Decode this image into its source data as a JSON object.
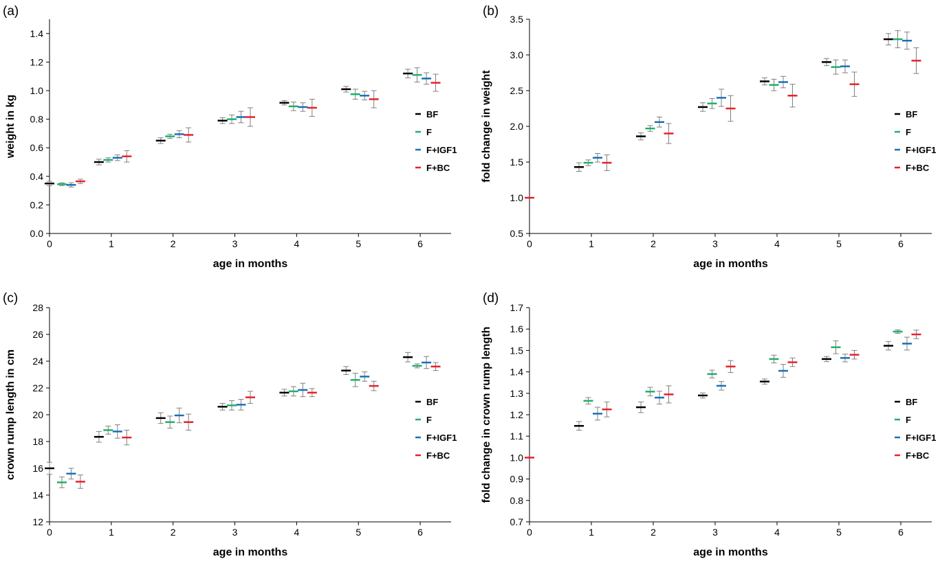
{
  "colors": {
    "BF": "#000000",
    "F": "#1eb06a",
    "F+IGF1": "#1a6fb8",
    "F+BC": "#e8202a",
    "errorbar": "#7f7f7f",
    "axis": "#000000"
  },
  "chart_data": [
    {
      "panel": "(a)",
      "type": "scatter",
      "xlabel": "age in months",
      "ylabel": "weight in kg",
      "xlim": [
        0,
        6.5
      ],
      "xticks": [
        0,
        1,
        2,
        3,
        4,
        5,
        6
      ],
      "ylim": [
        0.0,
        1.5
      ],
      "yticks": [
        "0.0",
        "0.2",
        "0.4",
        "0.6",
        "0.8",
        "1.0",
        "1.2",
        "1.4"
      ],
      "legend": [
        "BF",
        "F",
        "F+IGF1",
        "F+BC"
      ],
      "legend_position": "right",
      "series": [
        {
          "name": "BF",
          "x": [
            0,
            0.8,
            1.8,
            2.8,
            3.8,
            4.8,
            5.8
          ],
          "y": [
            0.35,
            0.5,
            0.65,
            0.79,
            0.915,
            1.01,
            1.12
          ],
          "err": [
            0.015,
            0.02,
            0.02,
            0.02,
            0.015,
            0.02,
            0.03
          ]
        },
        {
          "name": "F",
          "x": [
            0.2,
            0.95,
            1.95,
            2.95,
            3.95,
            4.95,
            5.95
          ],
          "y": [
            0.345,
            0.515,
            0.68,
            0.8,
            0.89,
            0.975,
            1.11
          ],
          "err": [
            0.01,
            0.015,
            0.015,
            0.03,
            0.03,
            0.035,
            0.05
          ]
        },
        {
          "name": "F+IGF1",
          "x": [
            0.35,
            1.1,
            2.1,
            3.1,
            4.1,
            5.1,
            6.1
          ],
          "y": [
            0.34,
            0.53,
            0.695,
            0.815,
            0.885,
            0.965,
            1.085
          ],
          "err": [
            0.015,
            0.02,
            0.025,
            0.04,
            0.03,
            0.03,
            0.04
          ]
        },
        {
          "name": "F+BC",
          "x": [
            0.5,
            1.25,
            2.25,
            3.25,
            4.25,
            5.25,
            6.25
          ],
          "y": [
            0.365,
            0.54,
            0.69,
            0.815,
            0.88,
            0.94,
            1.055
          ],
          "err": [
            0.015,
            0.04,
            0.05,
            0.065,
            0.06,
            0.06,
            0.06
          ]
        }
      ]
    },
    {
      "panel": "(b)",
      "type": "scatter",
      "xlabel": "age in months",
      "ylabel": "fold change in weight",
      "xlim": [
        0,
        6.5
      ],
      "xticks": [
        0,
        1,
        2,
        3,
        4,
        5,
        6
      ],
      "ylim": [
        0.5,
        3.5
      ],
      "yticks": [
        "0.5",
        "1.0",
        "1.5",
        "2.0",
        "2.5",
        "3.0",
        "3.5"
      ],
      "legend": [
        "BF",
        "F",
        "F+IGF1",
        "F+BC"
      ],
      "legend_position": "right",
      "series": [
        {
          "name": "BF",
          "x": [
            0.8,
            1.8,
            2.8,
            3.8,
            4.8,
            5.8
          ],
          "y": [
            1.43,
            1.86,
            2.27,
            2.63,
            2.9,
            3.22
          ],
          "err": [
            0.06,
            0.05,
            0.06,
            0.05,
            0.05,
            0.08
          ]
        },
        {
          "name": "F",
          "x": [
            0.95,
            1.95,
            2.95,
            3.95,
            4.95,
            5.95
          ],
          "y": [
            1.49,
            1.97,
            2.32,
            2.58,
            2.83,
            3.22
          ],
          "err": [
            0.04,
            0.04,
            0.07,
            0.08,
            0.1,
            0.12
          ]
        },
        {
          "name": "F+IGF1",
          "x": [
            1.1,
            2.1,
            3.1,
            4.1,
            5.1,
            6.1
          ],
          "y": [
            1.56,
            2.06,
            2.4,
            2.62,
            2.84,
            3.2
          ],
          "err": [
            0.06,
            0.07,
            0.12,
            0.08,
            0.09,
            0.12
          ]
        },
        {
          "name": "F+BC",
          "x": [
            0,
            1.25,
            2.25,
            3.25,
            4.25,
            5.25,
            6.25
          ],
          "y": [
            1.0,
            1.49,
            1.9,
            2.25,
            2.43,
            2.59,
            2.92
          ],
          "err": [
            0,
            0.11,
            0.14,
            0.18,
            0.16,
            0.17,
            0.18
          ]
        }
      ]
    },
    {
      "panel": "(c)",
      "type": "scatter",
      "xlabel": "age in months",
      "ylabel": "crown rump length in cm",
      "xlim": [
        0,
        6.5
      ],
      "xticks": [
        0,
        1,
        2,
        3,
        4,
        5,
        6
      ],
      "ylim": [
        12,
        28
      ],
      "yticks": [
        "12",
        "14",
        "16",
        "18",
        "20",
        "22",
        "24",
        "26",
        "28"
      ],
      "legend": [
        "BF",
        "F",
        "F+IGF1",
        "F+BC"
      ],
      "legend_position": "right",
      "series": [
        {
          "name": "BF",
          "x": [
            0,
            0.8,
            1.8,
            2.8,
            3.8,
            4.8,
            5.8
          ],
          "y": [
            16.0,
            18.35,
            19.75,
            20.6,
            21.65,
            23.3,
            24.3
          ],
          "err": [
            0.45,
            0.4,
            0.4,
            0.25,
            0.25,
            0.3,
            0.35
          ]
        },
        {
          "name": "F",
          "x": [
            0.2,
            0.95,
            1.95,
            2.95,
            3.95,
            4.95,
            5.95
          ],
          "y": [
            14.95,
            18.85,
            19.45,
            20.7,
            21.75,
            22.6,
            23.65
          ],
          "err": [
            0.4,
            0.3,
            0.45,
            0.35,
            0.35,
            0.5,
            0.15
          ]
        },
        {
          "name": "F+IGF1",
          "x": [
            0.35,
            1.1,
            2.1,
            3.1,
            4.1,
            5.1,
            6.1
          ],
          "y": [
            15.6,
            18.75,
            19.95,
            20.75,
            21.85,
            22.85,
            23.9
          ],
          "err": [
            0.4,
            0.5,
            0.55,
            0.4,
            0.5,
            0.35,
            0.45
          ]
        },
        {
          "name": "F+BC",
          "x": [
            0.5,
            1.25,
            2.25,
            3.25,
            4.25,
            5.25,
            6.25
          ],
          "y": [
            15.0,
            18.3,
            19.45,
            21.3,
            21.65,
            22.15,
            23.6
          ],
          "err": [
            0.5,
            0.55,
            0.6,
            0.45,
            0.3,
            0.35,
            0.3
          ]
        }
      ]
    },
    {
      "panel": "(d)",
      "type": "scatter",
      "xlabel": "age in months",
      "ylabel": "fold change in crown rump length",
      "xlim": [
        0,
        6.5
      ],
      "xticks": [
        0,
        1,
        2,
        3,
        4,
        5,
        6
      ],
      "ylim": [
        0.7,
        1.7
      ],
      "yticks": [
        "0.7",
        "0.8",
        "0.9",
        "1.0",
        "1.1",
        "1.2",
        "1.3",
        "1.4",
        "1.5",
        "1.6",
        "1.7"
      ],
      "legend": [
        "BF",
        "F",
        "F+IGF1",
        "F+BC"
      ],
      "legend_position": "right",
      "series": [
        {
          "name": "BF",
          "x": [
            0.8,
            1.8,
            2.8,
            3.8,
            4.8,
            5.8
          ],
          "y": [
            1.148,
            1.235,
            1.29,
            1.355,
            1.46,
            1.522
          ],
          "err": [
            0.02,
            0.025,
            0.012,
            0.012,
            0.012,
            0.02
          ]
        },
        {
          "name": "F",
          "x": [
            0.95,
            1.95,
            2.95,
            3.95,
            4.95,
            5.95
          ],
          "y": [
            1.265,
            1.308,
            1.39,
            1.46,
            1.515,
            1.588
          ],
          "err": [
            0.015,
            0.02,
            0.018,
            0.018,
            0.03,
            0.008
          ]
        },
        {
          "name": "F+IGF1",
          "x": [
            1.1,
            2.1,
            3.1,
            4.1,
            5.1,
            6.1
          ],
          "y": [
            1.205,
            1.28,
            1.335,
            1.405,
            1.465,
            1.532
          ],
          "err": [
            0.03,
            0.03,
            0.02,
            0.03,
            0.018,
            0.03
          ]
        },
        {
          "name": "F+BC",
          "x": [
            0,
            1.25,
            2.25,
            3.25,
            4.25,
            5.25,
            6.25
          ],
          "y": [
            1.0,
            1.225,
            1.295,
            1.425,
            1.445,
            1.48,
            1.575
          ],
          "err": [
            0,
            0.035,
            0.04,
            0.028,
            0.02,
            0.02,
            0.02
          ]
        }
      ]
    }
  ]
}
